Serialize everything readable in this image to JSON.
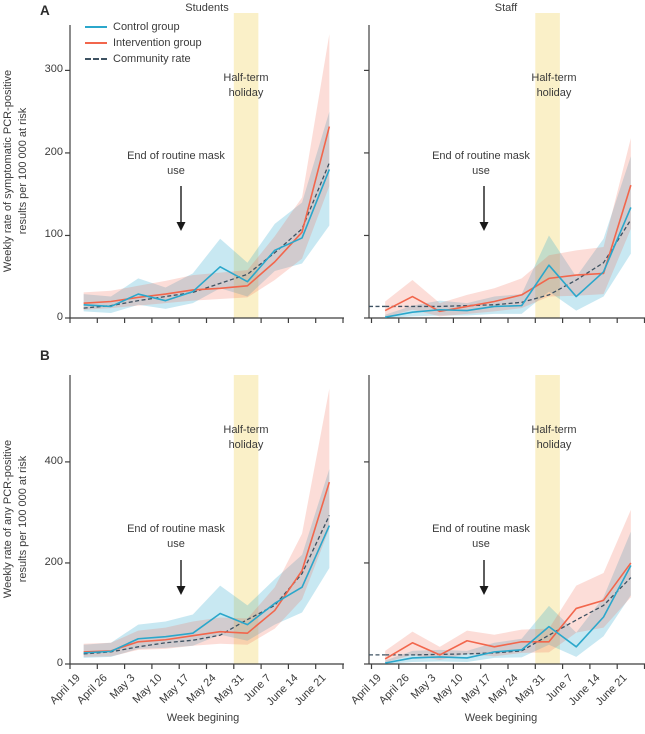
{
  "figure": {
    "panel_a_label": "A",
    "panel_b_label": "B",
    "column_titles": {
      "left": "Students",
      "right": "Staff"
    },
    "x_axis_title": "Week begining",
    "y_axis_title_a": "Weekly rate of symptomatic PCR-positive\nresults per 100 000 at risk",
    "y_axis_title_b": "Weekly rate of any PCR-positive\nresults per 100 000 at risk",
    "holiday_annotation": "Half-term holiday",
    "mask_annotation": "End of routine mask use",
    "legend": [
      {
        "label": "Control group",
        "style": "solid",
        "color_key": "control"
      },
      {
        "label": "Intervention group",
        "style": "solid",
        "color_key": "intervention"
      },
      {
        "label": "Community rate",
        "style": "dashed",
        "color_key": "community"
      }
    ]
  },
  "colors": {
    "control": "#2BA7CB",
    "intervention": "#F2664C",
    "community": "#3E5262",
    "holiday_band": "#FAF0C8",
    "axis": "#3F3F3F",
    "text": "#3B3B3B",
    "arrow": "#1A1A1A"
  },
  "chart_data": [
    {
      "id": "panel_a_students",
      "type": "line",
      "panel": "A",
      "title": "Students",
      "ylabel": "Weekly rate of symptomatic PCR-positive results per 100 000 at risk",
      "x": [
        "April 19",
        "April 26",
        "May 3",
        "May 10",
        "May 17",
        "May 24",
        "May 31",
        "June 7",
        "June 14",
        "June 21"
      ],
      "ylim": [
        0,
        355
      ],
      "yticks": [
        0,
        100,
        200,
        300
      ],
      "holiday_band_weeks": [
        "May 31",
        "June 7"
      ],
      "annotations": [
        "Half-term holiday",
        "End of routine mask use"
      ],
      "series": [
        {
          "name": "Control group",
          "values": [
            16,
            14,
            29,
            21,
            32,
            62,
            44,
            82,
            97,
            180
          ],
          "lower": [
            8,
            6,
            16,
            11,
            18,
            36,
            26,
            57,
            66,
            112
          ],
          "upper": [
            29,
            26,
            48,
            37,
            54,
            96,
            67,
            114,
            140,
            250
          ]
        },
        {
          "name": "Intervention group",
          "values": [
            18,
            20,
            25,
            29,
            34,
            36,
            39,
            68,
            104,
            232
          ],
          "lower": [
            10,
            12,
            15,
            18,
            21,
            23,
            25,
            46,
            72,
            160
          ],
          "upper": [
            31,
            33,
            39,
            45,
            52,
            55,
            58,
            99,
            146,
            344
          ]
        },
        {
          "name": "Community rate",
          "values": [
            12,
            15,
            21,
            26,
            31,
            42,
            53,
            79,
            108,
            188
          ]
        }
      ]
    },
    {
      "id": "panel_a_staff",
      "type": "line",
      "panel": "A",
      "title": "Staff",
      "ylabel": "Weekly rate of symptomatic PCR-positive results per 100 000 at risk",
      "x": [
        "April 19",
        "April 26",
        "May 3",
        "May 10",
        "May 17",
        "May 24",
        "May 31",
        "June 7",
        "June 14",
        "June 21"
      ],
      "ylim": [
        0,
        355
      ],
      "yticks": [
        0,
        100,
        200,
        300
      ],
      "holiday_band_weeks": [
        "May 31",
        "June 7"
      ],
      "annotations": [
        "Half-term holiday",
        "End of routine mask use"
      ],
      "series": [
        {
          "name": "Control group",
          "values": [
            1,
            7,
            10,
            9,
            14,
            15,
            64,
            26,
            56,
            134
          ],
          "lower": [
            0,
            2,
            3,
            3,
            5,
            5,
            32,
            9,
            26,
            78
          ],
          "upper": [
            4,
            15,
            21,
            18,
            26,
            29,
            100,
            50,
            96,
            196
          ]
        },
        {
          "name": "Intervention group",
          "values": [
            9,
            26,
            8,
            14,
            20,
            28,
            48,
            52,
            54,
            161
          ],
          "lower": [
            1,
            10,
            2,
            5,
            8,
            12,
            26,
            27,
            29,
            108
          ],
          "upper": [
            20,
            46,
            18,
            28,
            36,
            48,
            76,
            82,
            86,
            218
          ]
        },
        {
          "name": "Community rate",
          "values": [
            14,
            14,
            14,
            15,
            16,
            19,
            28,
            46,
            67,
            119
          ]
        }
      ]
    },
    {
      "id": "panel_b_students",
      "type": "line",
      "panel": "B",
      "title": "Students",
      "ylabel": "Weekly rate of any PCR-positive results per 100 000 at risk",
      "x": [
        "April 19",
        "April 26",
        "May 3",
        "May 10",
        "May 17",
        "May 24",
        "May 31",
        "June 7",
        "June 14",
        "June 21"
      ],
      "ylim": [
        0,
        572
      ],
      "yticks": [
        0,
        200,
        400
      ],
      "holiday_band_weeks": [
        "May 31",
        "June 7"
      ],
      "annotations": [
        "Half-term holiday",
        "End of routine mask use"
      ],
      "series": [
        {
          "name": "Control group",
          "values": [
            22,
            25,
            50,
            54,
            61,
            100,
            78,
            120,
            152,
            274
          ],
          "lower": [
            12,
            14,
            30,
            32,
            36,
            58,
            46,
            78,
            102,
            190
          ],
          "upper": [
            38,
            42,
            78,
            84,
            98,
            155,
            116,
            168,
            216,
            386
          ]
        },
        {
          "name": "Intervention group",
          "values": [
            24,
            26,
            44,
            48,
            56,
            64,
            61,
            106,
            185,
            360
          ],
          "lower": [
            14,
            15,
            28,
            30,
            36,
            40,
            38,
            70,
            128,
            268
          ],
          "upper": [
            40,
            42,
            66,
            72,
            84,
            92,
            90,
            152,
            258,
            545
          ]
        },
        {
          "name": "Community rate",
          "values": [
            20,
            24,
            34,
            42,
            47,
            57,
            88,
            116,
            179,
            294
          ]
        }
      ]
    },
    {
      "id": "panel_b_staff",
      "type": "line",
      "panel": "B",
      "title": "Staff",
      "ylabel": "Weekly rate of any PCR-positive results per 100 000 at risk",
      "x": [
        "April 19",
        "April 26",
        "May 3",
        "May 10",
        "May 17",
        "May 24",
        "May 31",
        "June 7",
        "June 14",
        "June 21"
      ],
      "ylim": [
        0,
        572
      ],
      "yticks": [
        0,
        200,
        400
      ],
      "holiday_band_weeks": [
        "May 31",
        "June 7"
      ],
      "annotations": [
        "Half-term holiday",
        "End of routine mask use"
      ],
      "series": [
        {
          "name": "Control group",
          "values": [
            2,
            12,
            14,
            12,
            24,
            28,
            74,
            34,
            93,
            195
          ],
          "lower": [
            0,
            4,
            5,
            4,
            12,
            13,
            38,
            14,
            55,
            136
          ],
          "upper": [
            7,
            26,
            28,
            26,
            42,
            50,
            115,
            62,
            132,
            262
          ]
        },
        {
          "name": "Intervention group",
          "values": [
            10,
            42,
            18,
            46,
            34,
            44,
            44,
            110,
            126,
            200
          ],
          "lower": [
            3,
            18,
            8,
            20,
            15,
            22,
            23,
            62,
            72,
            132
          ],
          "upper": [
            26,
            64,
            34,
            66,
            58,
            68,
            70,
            155,
            180,
            305
          ]
        },
        {
          "name": "Community rate",
          "values": [
            18,
            18,
            19,
            20,
            22,
            26,
            57,
            87,
            116,
            171
          ]
        }
      ]
    }
  ]
}
